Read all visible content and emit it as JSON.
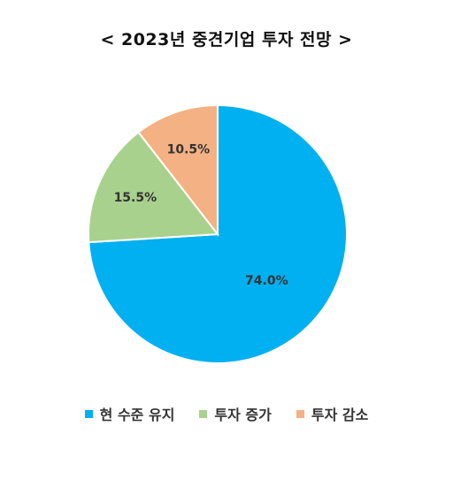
{
  "chart_data": {
    "type": "pie",
    "title": "< 2023년 중견기업 투자 전망 >",
    "categories": [
      "현 수준 유지",
      "투자 증가",
      "투자 감소"
    ],
    "values": [
      74.0,
      15.5,
      10.5
    ],
    "labels": [
      "74.0%",
      "15.5%",
      "10.5%"
    ],
    "colors": [
      "#00B0F0",
      "#A9D18E",
      "#F4B183"
    ],
    "legend_position": "bottom"
  }
}
